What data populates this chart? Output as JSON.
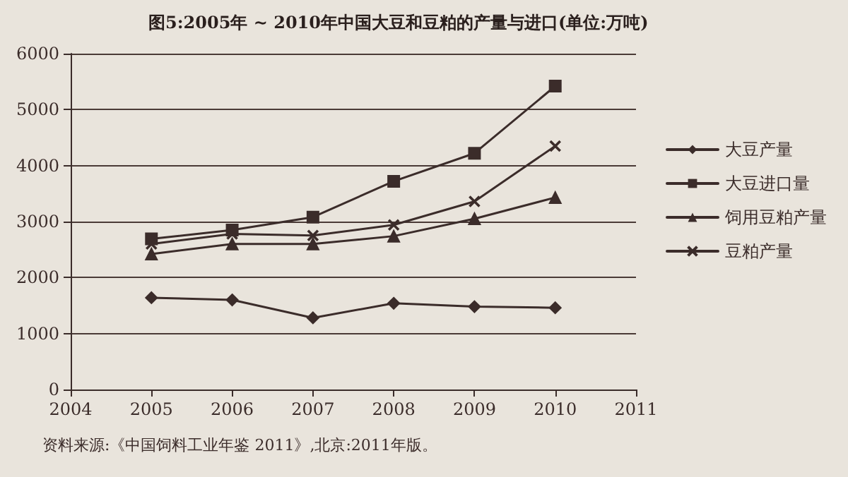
{
  "chart_data": {
    "type": "line",
    "title": "图5:2005年 ~ 2010年中国大豆和豆粕的产量与进口(单位:万吨)",
    "x": [
      2005,
      2006,
      2007,
      2008,
      2009,
      2010
    ],
    "series": [
      {
        "name": "大豆产量",
        "color": "#3b2c2a",
        "marker": "diamond",
        "values": [
          1640,
          1600,
          1280,
          1540,
          1480,
          1460
        ]
      },
      {
        "name": "大豆进口量",
        "color": "#3b2c2a",
        "marker": "square",
        "values": [
          2690,
          2850,
          3080,
          3720,
          4220,
          5420
        ]
      },
      {
        "name": "饲用豆粕产量",
        "color": "#3b2c2a",
        "marker": "triangle",
        "values": [
          2420,
          2600,
          2600,
          2740,
          3050,
          3430
        ]
      },
      {
        "name": "豆粕产量",
        "color": "#3b2c2a",
        "marker": "cross",
        "values": [
          2600,
          2780,
          2750,
          2940,
          3360,
          4350
        ]
      }
    ],
    "xlim": [
      2004,
      2011
    ],
    "xticks": [
      2004,
      2005,
      2006,
      2007,
      2008,
      2009,
      2010,
      2011
    ],
    "ylim": [
      0,
      6000
    ],
    "yticks": [
      0,
      1000,
      2000,
      3000,
      4000,
      5000,
      6000
    ],
    "grid": "y",
    "legend": "right",
    "line_style": "solid",
    "annotations": [
      "资料来源:《中国饲料工业年鉴 2011》,北京:2011年版。"
    ]
  }
}
